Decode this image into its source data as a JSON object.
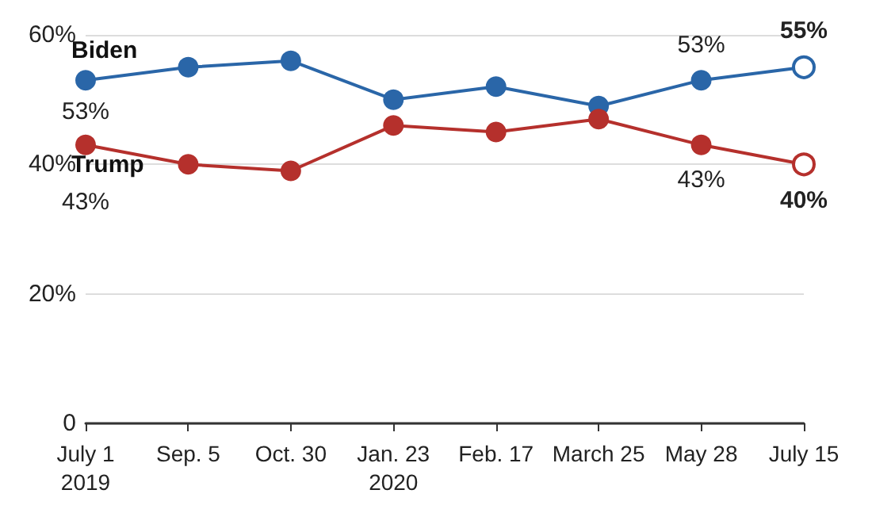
{
  "chart_data": {
    "type": "line",
    "categories": [
      "July 1\n2019",
      "Sep. 5",
      "Oct. 30",
      "Jan. 23\n2020",
      "Feb. 17",
      "March 25",
      "May 28",
      "July 15"
    ],
    "series": [
      {
        "name": "Biden",
        "color": "#2a66a8",
        "values": [
          53,
          55,
          56,
          50,
          52,
          49,
          53,
          55
        ],
        "value_labels": [
          "53%",
          null,
          null,
          null,
          null,
          null,
          "53%",
          "55%"
        ]
      },
      {
        "name": "Trump",
        "color": "#b5302c",
        "values": [
          43,
          40,
          39,
          46,
          45,
          47,
          43,
          40
        ],
        "value_labels": [
          "43%",
          null,
          null,
          null,
          null,
          null,
          "43%",
          "40%"
        ]
      }
    ],
    "ylim": [
      0,
      60
    ],
    "yticks": [
      {
        "value": 0,
        "label": "0"
      },
      {
        "value": 20,
        "label": "20%"
      },
      {
        "value": 40,
        "label": "40%"
      },
      {
        "value": 60,
        "label": "60%"
      }
    ],
    "grid": "y",
    "marker": "circle",
    "line_style": "solid",
    "legend": false
  }
}
